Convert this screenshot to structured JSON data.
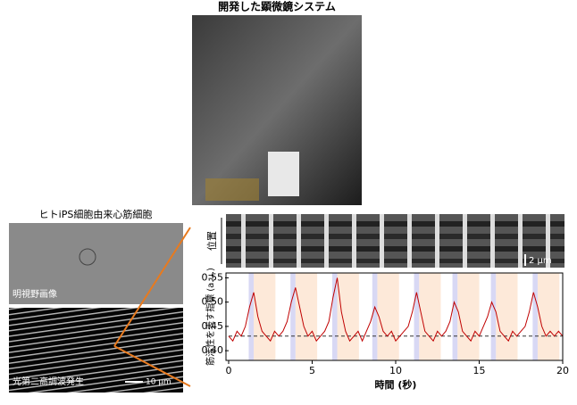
{
  "title": "開発した顕微鏡システム",
  "cell_panel": {
    "title": "ヒトiPS細胞由来心筋細胞",
    "brightfield_label": "明視野画像",
    "shg_label": "光第二高調波発生",
    "scale_bar": "10 μm"
  },
  "kymograph": {
    "ylabel": "位置",
    "scale_bar": "2 μm"
  },
  "chart_data": {
    "type": "line",
    "ylabel": "筋活性を表す指標 (a.u.)",
    "xlabel": "時間 (秒)",
    "xlim": [
      0,
      20
    ],
    "xticks": [
      0,
      5,
      10,
      15,
      20
    ],
    "ylim": [
      0.38,
      0.56
    ],
    "yticks": [
      {
        "value": 0.4,
        "label": "0.40"
      },
      0.45,
      {
        "value": 0.5,
        "label": "0.50"
      },
      0.55
    ],
    "reference_line": 0.43,
    "contraction_bands": [
      [
        1.2,
        1.5
      ],
      [
        3.7,
        4.0
      ],
      [
        6.2,
        6.5
      ],
      [
        8.6,
        8.9
      ],
      [
        11.1,
        11.4
      ],
      [
        13.4,
        13.7
      ],
      [
        15.7,
        16.0
      ],
      [
        18.2,
        18.5
      ]
    ],
    "relaxation_bands": [
      [
        1.5,
        2.8
      ],
      [
        4.0,
        5.3
      ],
      [
        6.5,
        7.8
      ],
      [
        8.9,
        10.2
      ],
      [
        11.4,
        12.7
      ],
      [
        13.7,
        15.0
      ],
      [
        16.0,
        17.3
      ],
      [
        18.5,
        19.8
      ]
    ],
    "x": [
      0,
      0.25,
      0.5,
      0.75,
      1,
      1.25,
      1.5,
      1.75,
      2,
      2.25,
      2.5,
      2.75,
      3,
      3.25,
      3.5,
      3.75,
      4,
      4.25,
      4.5,
      4.75,
      5,
      5.25,
      5.5,
      5.75,
      6,
      6.25,
      6.5,
      6.75,
      7,
      7.25,
      7.5,
      7.75,
      8,
      8.25,
      8.5,
      8.75,
      9,
      9.25,
      9.5,
      9.75,
      10,
      10.25,
      10.5,
      10.75,
      11,
      11.25,
      11.5,
      11.75,
      12,
      12.25,
      12.5,
      12.75,
      13,
      13.25,
      13.5,
      13.75,
      14,
      14.25,
      14.5,
      14.75,
      15,
      15.25,
      15.5,
      15.75,
      16,
      16.25,
      16.5,
      16.75,
      17,
      17.25,
      17.5,
      17.75,
      18,
      18.25,
      18.5,
      18.75,
      19,
      19.25,
      19.5,
      19.75,
      20
    ],
    "series": [
      {
        "color": "#c00000",
        "values": [
          0.43,
          0.42,
          0.44,
          0.43,
          0.45,
          0.49,
          0.52,
          0.47,
          0.44,
          0.43,
          0.42,
          0.44,
          0.43,
          0.44,
          0.46,
          0.5,
          0.53,
          0.49,
          0.45,
          0.43,
          0.44,
          0.42,
          0.43,
          0.44,
          0.46,
          0.51,
          0.55,
          0.48,
          0.44,
          0.42,
          0.43,
          0.44,
          0.42,
          0.44,
          0.46,
          0.49,
          0.47,
          0.44,
          0.43,
          0.44,
          0.42,
          0.43,
          0.44,
          0.45,
          0.48,
          0.52,
          0.48,
          0.44,
          0.43,
          0.42,
          0.44,
          0.43,
          0.44,
          0.46,
          0.5,
          0.48,
          0.44,
          0.43,
          0.42,
          0.44,
          0.43,
          0.45,
          0.47,
          0.5,
          0.48,
          0.44,
          0.43,
          0.42,
          0.44,
          0.43,
          0.44,
          0.45,
          0.48,
          0.52,
          0.49,
          0.45,
          0.43,
          0.44,
          0.43,
          0.44,
          0.43
        ]
      }
    ]
  }
}
